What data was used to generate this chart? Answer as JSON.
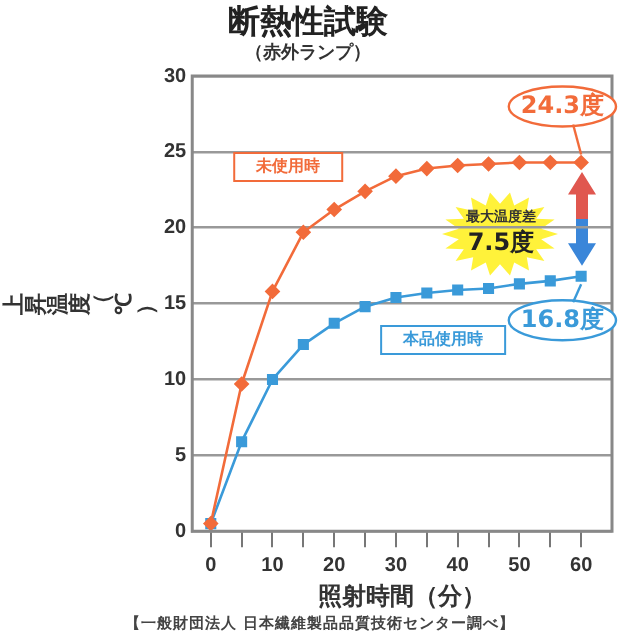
{
  "chart_data": {
    "type": "line",
    "title": "断熱性試験",
    "subtitle": "（赤外ランプ）",
    "xlabel": "照射時間（分）",
    "ylabel": "上昇温度（℃）",
    "x": [
      0,
      5,
      10,
      15,
      20,
      25,
      30,
      35,
      40,
      45,
      50,
      55,
      60
    ],
    "series": [
      {
        "name": "未使用時",
        "color": "#f26b3a",
        "values": [
          0.5,
          9.7,
          15.8,
          19.7,
          21.2,
          22.4,
          23.4,
          23.9,
          24.1,
          24.2,
          24.3,
          24.3,
          24.3
        ]
      },
      {
        "name": "本品使用時",
        "color": "#3a9ad9",
        "marker": "square",
        "values": [
          0.5,
          5.9,
          10,
          12.3,
          13.7,
          14.8,
          15.4,
          15.7,
          15.9,
          16,
          16.3,
          16.5,
          16.8
        ]
      }
    ],
    "xlim": [
      -3,
      65
    ],
    "xticks": [
      0,
      {
        "value": 5,
        "label": null
      },
      10,
      {
        "value": 15,
        "label": null
      },
      20,
      {
        "value": 25,
        "label": null
      },
      30,
      {
        "value": 35,
        "label": null
      },
      40,
      {
        "value": 45,
        "label": null
      },
      50,
      {
        "value": 55,
        "label": null
      },
      60
    ],
    "ylim": [
      0,
      30
    ],
    "yticks": [
      0,
      5,
      10,
      15,
      20,
      25,
      30
    ],
    "grid": "y",
    "legend": false,
    "marker": "diamond",
    "annotations": [
      {
        "text": "24.3度",
        "x": 60,
        "y": 24.3
      },
      {
        "text": "16.8度",
        "x": 60,
        "y": 16.8
      },
      "最大温度差",
      "7.5度",
      "【一般財団法人 日本繊維製品品質技術センター調べ】"
    ]
  }
}
